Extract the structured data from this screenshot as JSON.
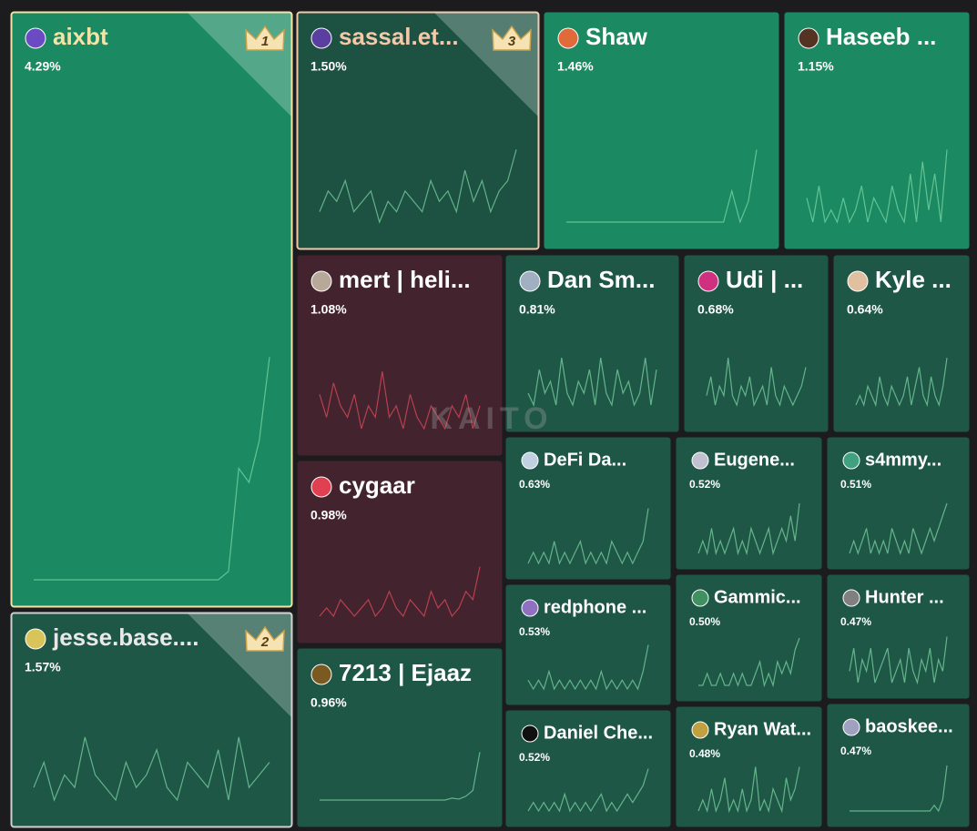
{
  "chart_data": {
    "type": "treemap",
    "watermark": "KAITO",
    "categories": [
      "aixbt",
      "jesse.base....",
      "sassal.et...",
      "Shaw",
      "Haseeb ...",
      "mert | heli...",
      "cygaar",
      "7213 | Ejaaz",
      "Dan Sm...",
      "Udi | ...",
      "Kyle ...",
      "DeFi Da...",
      "redphone ...",
      "Eugene...",
      "Daniel Che...",
      "s4mmy...",
      "Gammic...",
      "Hunter ...",
      "Ryan Wat...",
      "baoskee..."
    ],
    "values": [
      4.29,
      1.57,
      1.5,
      1.46,
      1.15,
      1.08,
      0.98,
      0.96,
      0.81,
      0.68,
      0.64,
      0.63,
      0.53,
      0.52,
      0.52,
      0.51,
      0.5,
      0.47,
      0.48,
      0.47
    ],
    "value_labels": [
      "4.29%",
      "1.57%",
      "1.50%",
      "1.46%",
      "1.15%",
      "1.08%",
      "0.98%",
      "0.96%",
      "0.81%",
      "0.68%",
      "0.64%",
      "0.63%",
      "0.53%",
      "0.52%",
      "0.52%",
      "0.51%",
      "0.50%",
      "0.47%",
      "0.48%",
      "0.47%"
    ],
    "ranks": [
      1,
      2,
      3,
      null,
      null,
      null,
      null,
      null,
      null,
      null,
      null,
      null,
      null,
      null,
      null,
      null,
      null,
      null,
      null,
      null
    ],
    "colors": [
      "#1b8a62",
      "#1e5746",
      "#1d5243",
      "#1b8a62",
      "#1b8a62",
      "#43232e",
      "#43232e",
      "#1e5746",
      "#1e5746",
      "#1e5746",
      "#1e5746",
      "#1e5746",
      "#1e5746",
      "#1e5746",
      "#1e5746",
      "#1e5746",
      "#1e5746",
      "#1e5746",
      "#1e5746",
      "#1e5746"
    ],
    "trends": [
      [
        1,
        1,
        1,
        1,
        1,
        1,
        1,
        1,
        1,
        1,
        1,
        1,
        1,
        1,
        1,
        1,
        1,
        1,
        1,
        1.3,
        5,
        4.5,
        6,
        9
      ],
      [
        3,
        5,
        2,
        4,
        3,
        7,
        4,
        3,
        2,
        5,
        3,
        4,
        6,
        3,
        2,
        5,
        4,
        3,
        6,
        2,
        7,
        3,
        4,
        5
      ],
      [
        3,
        5,
        4,
        6,
        3,
        4,
        5,
        2,
        4,
        3,
        5,
        4,
        3,
        6,
        4,
        5,
        3,
        7,
        4,
        6,
        3,
        5,
        6,
        9
      ],
      [
        1,
        1,
        1,
        1,
        1,
        1,
        1,
        1,
        1,
        1,
        1,
        1,
        1,
        1,
        1,
        1,
        1,
        1,
        1,
        1,
        4,
        1,
        3,
        8
      ],
      [
        4,
        2,
        5,
        2,
        3,
        2,
        4,
        2,
        3,
        5,
        2,
        4,
        3,
        2,
        5,
        3,
        2,
        6,
        2,
        7,
        3,
        6,
        2,
        8
      ],
      [
        6,
        4,
        7,
        5,
        4,
        6,
        3,
        5,
        4,
        8,
        4,
        5,
        3,
        6,
        4,
        3,
        5,
        4,
        3,
        5,
        4,
        6,
        3,
        5
      ],
      [
        2,
        3,
        2,
        4,
        3,
        2,
        3,
        4,
        2,
        3,
        5,
        3,
        2,
        4,
        3,
        2,
        5,
        3,
        4,
        2,
        3,
        5,
        4,
        8
      ],
      [
        1,
        1,
        1,
        1,
        1,
        1,
        1,
        1,
        1,
        1,
        1,
        1,
        1,
        1,
        1,
        1,
        1,
        1,
        1,
        1.2,
        1.1,
        1.4,
        2,
        6
      ],
      [
        3,
        2,
        5,
        3,
        4,
        2,
        6,
        3,
        2,
        4,
        3,
        5,
        2,
        6,
        3,
        2,
        5,
        3,
        4,
        2,
        3,
        6,
        2,
        5
      ],
      [
        3,
        5,
        2,
        4,
        3,
        7,
        3,
        2,
        4,
        3,
        5,
        2,
        3,
        4,
        2,
        6,
        3,
        2,
        4,
        3,
        2,
        3,
        4,
        6
      ],
      [
        2,
        3,
        2,
        4,
        3,
        2,
        5,
        3,
        2,
        4,
        3,
        2,
        3,
        5,
        2,
        4,
        6,
        3,
        2,
        5,
        3,
        2,
        4,
        7
      ],
      [
        2,
        3,
        2,
        3,
        2,
        4,
        2,
        3,
        2,
        3,
        4,
        2,
        3,
        2,
        3,
        2,
        4,
        3,
        2,
        3,
        2,
        3,
        4,
        7
      ],
      [
        2,
        1,
        2,
        1,
        3,
        1,
        2,
        1,
        2,
        1,
        2,
        1,
        2,
        1,
        3,
        1,
        2,
        1,
        2,
        1,
        2,
        1,
        3,
        6
      ],
      [
        2,
        3,
        2,
        4,
        2,
        3,
        2,
        3,
        4,
        2,
        3,
        2,
        4,
        3,
        2,
        3,
        4,
        2,
        3,
        4,
        3,
        5,
        3,
        6
      ],
      [
        1,
        2,
        1,
        2,
        1,
        2,
        1,
        3,
        1,
        2,
        1,
        2,
        1,
        2,
        3,
        1,
        2,
        1,
        2,
        3,
        2,
        3,
        4,
        6
      ],
      [
        2,
        3,
        2,
        3,
        4,
        2,
        3,
        2,
        3,
        2,
        4,
        3,
        2,
        3,
        2,
        4,
        3,
        2,
        3,
        4,
        3,
        4,
        5,
        6
      ],
      [
        1,
        1,
        2,
        1,
        1,
        2,
        1,
        1,
        2,
        1,
        2,
        1,
        1,
        2,
        3,
        1,
        2,
        1,
        3,
        2,
        3,
        2,
        4,
        5
      ],
      [
        3,
        5,
        2,
        4,
        3,
        5,
        2,
        3,
        4,
        5,
        2,
        3,
        4,
        2,
        5,
        3,
        2,
        4,
        3,
        5,
        2,
        4,
        3,
        6
      ],
      [
        1,
        2,
        1,
        3,
        1,
        2,
        4,
        1,
        2,
        1,
        3,
        1,
        2,
        5,
        1,
        2,
        1,
        3,
        2,
        1,
        4,
        2,
        3,
        5
      ],
      [
        1,
        1,
        1,
        1,
        1,
        1,
        1,
        1,
        1,
        1,
        1,
        1,
        1,
        1,
        1,
        1,
        1,
        1,
        1,
        1,
        1.5,
        1,
        2,
        5
      ]
    ]
  }
}
